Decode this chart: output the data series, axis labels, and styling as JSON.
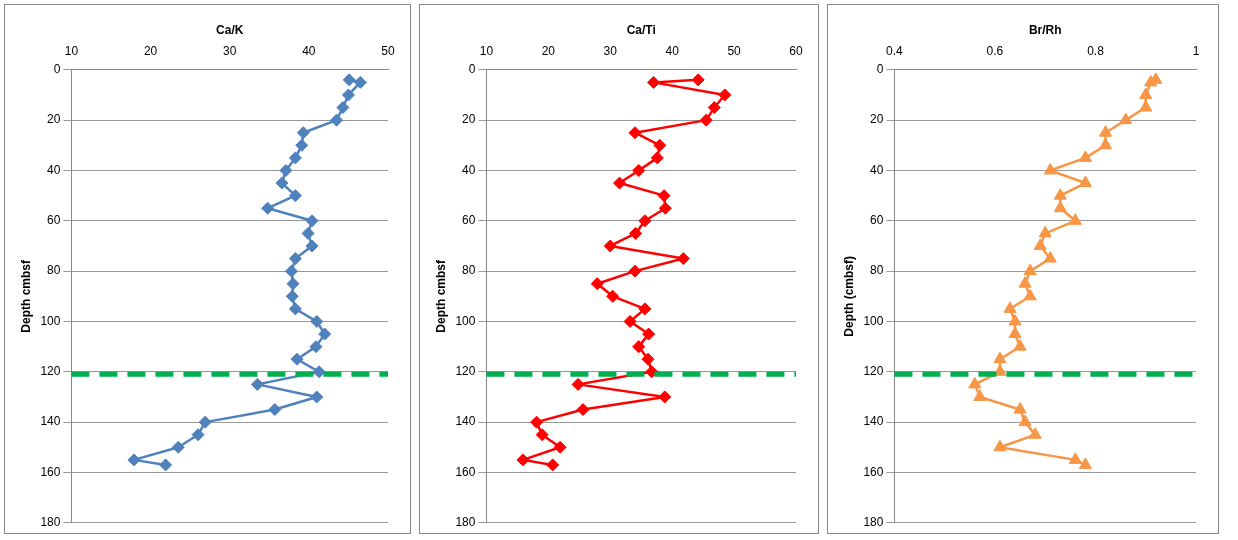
{
  "chart_data": [
    {
      "type": "line",
      "xlabel": "Ca/K",
      "ylabel": "Depth cmbsf",
      "xlim": [
        10,
        50
      ],
      "xticks": [
        10,
        20,
        30,
        40,
        50
      ],
      "ylim": [
        180,
        0
      ],
      "yticks": [
        0,
        20,
        40,
        60,
        80,
        100,
        120,
        140,
        160,
        180
      ],
      "grid": "y",
      "legend": false,
      "marker": "diamond",
      "line_style": "solid",
      "series": [
        {
          "color": "#4f81bd",
          "x": [
            45.1,
            46.5,
            45.0,
            44.3,
            43.5,
            39.3,
            39.1,
            38.3,
            37.1,
            36.6,
            38.3,
            34.8,
            40.4,
            39.9,
            40.4,
            38.3,
            37.8,
            38.0,
            37.9,
            38.3,
            41.0,
            42.0,
            40.9,
            38.5,
            41.3,
            33.5,
            41.0,
            35.7,
            26.9,
            26.0,
            23.5,
            17.9,
            21.9
          ],
          "values": [
            4,
            5,
            10,
            15,
            20,
            25,
            30,
            35,
            40,
            45,
            50,
            55,
            60,
            65,
            70,
            75,
            80,
            85,
            90,
            95,
            100,
            105,
            110,
            115,
            120,
            125,
            130,
            135,
            140,
            145,
            150,
            155,
            157
          ]
        }
      ],
      "ref_lines": [
        {
          "axis": "y",
          "value": 121,
          "color": "#00b050",
          "line_style": "dashed"
        }
      ]
    },
    {
      "type": "line",
      "xlabel": "Ca/Ti",
      "ylabel": "Depth cmbsf",
      "xlim": [
        10,
        60
      ],
      "xticks": [
        10,
        20,
        30,
        40,
        50,
        60
      ],
      "ylim": [
        180,
        0
      ],
      "yticks": [
        0,
        20,
        40,
        60,
        80,
        100,
        120,
        140,
        160,
        180
      ],
      "grid": "y",
      "legend": false,
      "marker": "diamond",
      "line_style": "solid",
      "series": [
        {
          "color": "#ff0000",
          "x": [
            44.2,
            37.0,
            48.5,
            46.8,
            45.5,
            34.0,
            38.0,
            37.6,
            34.6,
            31.5,
            38.7,
            38.9,
            35.6,
            34.1,
            30.0,
            41.8,
            34.0,
            27.9,
            30.4,
            35.6,
            33.2,
            36.2,
            34.6,
            36.1,
            36.7,
            24.8,
            38.8,
            25.6,
            18.1,
            19.0,
            21.9,
            15.9,
            20.7
          ],
          "values": [
            4,
            5,
            10,
            15,
            20,
            25,
            30,
            35,
            40,
            45,
            50,
            55,
            60,
            65,
            70,
            75,
            80,
            85,
            90,
            95,
            100,
            105,
            110,
            115,
            120,
            125,
            130,
            135,
            140,
            145,
            150,
            155,
            157
          ]
        }
      ],
      "ref_lines": [
        {
          "axis": "y",
          "value": 121,
          "color": "#00b050",
          "line_style": "dashed"
        }
      ]
    },
    {
      "type": "line",
      "xlabel": "Br/Rh",
      "ylabel": "Depth (cmbsf)",
      "xlim": [
        0.4,
        1
      ],
      "xticks": [
        0.4,
        0.6,
        0.8,
        1
      ],
      "ylim": [
        180,
        0
      ],
      "yticks": [
        0,
        20,
        40,
        60,
        80,
        100,
        120,
        140,
        160,
        180
      ],
      "grid": "y",
      "legend": false,
      "marker": "triangle",
      "line_style": "solid",
      "series": [
        {
          "color": "#f79646",
          "x": [
            0.92,
            0.91,
            0.9,
            0.9,
            0.86,
            0.82,
            0.82,
            0.78,
            0.71,
            0.78,
            0.73,
            0.73,
            0.76,
            0.7,
            0.69,
            0.71,
            0.67,
            0.66,
            0.67,
            0.63,
            0.64,
            0.64,
            0.65,
            0.61,
            0.61,
            0.56,
            0.57,
            0.65,
            0.66,
            0.68,
            0.61,
            0.76,
            0.78
          ],
          "values": [
            4,
            5,
            10,
            15,
            20,
            25,
            30,
            35,
            40,
            45,
            50,
            55,
            60,
            65,
            70,
            75,
            80,
            85,
            90,
            95,
            100,
            105,
            110,
            115,
            120,
            125,
            130,
            135,
            140,
            145,
            150,
            155,
            157
          ]
        }
      ],
      "ref_lines": [
        {
          "axis": "y",
          "value": 121,
          "color": "#00b050",
          "line_style": "dashed"
        }
      ]
    }
  ]
}
